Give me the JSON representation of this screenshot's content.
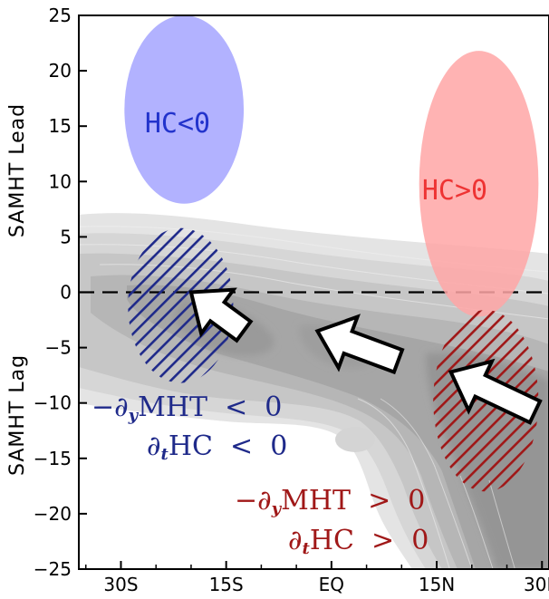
{
  "chart_data": {
    "type": "heatmap",
    "x_ticks": [
      {
        "value": -30,
        "label": "30S"
      },
      {
        "value": -15,
        "label": "15S"
      },
      {
        "value": 0,
        "label": "EQ"
      },
      {
        "value": 15,
        "label": "15N"
      },
      {
        "value": 30,
        "label": "30N"
      }
    ],
    "xlim": [
      -36,
      31
    ],
    "y_ticks": [
      25,
      20,
      15,
      10,
      5,
      0,
      -5,
      -10,
      -15,
      -20,
      -25
    ],
    "ylim": [
      -25,
      25
    ],
    "ylabel_top": "SAMHT Lead",
    "ylabel_bottom": "SAMHT Lag",
    "zero_line": 0,
    "regions": [
      {
        "label": "HC<0",
        "color": "#aaaaff",
        "text_color": "#2233cc",
        "center": [
          -21,
          16.5
        ],
        "radius": [
          8.5,
          8.5
        ]
      },
      {
        "label": "HC>0",
        "color": "#ffaaaa",
        "text_color": "#ee3333",
        "center": [
          21,
          9.8
        ],
        "radius": [
          8.5,
          12
        ]
      },
      {
        "label_lines": [
          "−∂yMHT  <  0",
          "∂tHC  <  0"
        ],
        "color": "#1f2a8a",
        "hatched": true,
        "center": [
          -21.5,
          -1.2
        ],
        "radius": [
          7.5,
          7
        ]
      },
      {
        "label_lines": [
          "−∂yMHT  >  0",
          "∂tHC  >  0"
        ],
        "color": "#a01818",
        "hatched": true,
        "center": [
          22,
          -9.8
        ],
        "radius": [
          7.5,
          8.2
        ]
      }
    ],
    "arrows": [
      {
        "from": [
          -12.5,
          -3.5
        ],
        "to": [
          -20,
          0
        ]
      },
      {
        "from": [
          9.5,
          -6.2
        ],
        "to": [
          -2,
          -3.5
        ]
      },
      {
        "from": [
          29,
          -10.8
        ],
        "to": [
          17,
          -7.2
        ]
      }
    ]
  },
  "annotations": {
    "hc_neg": "HC<0",
    "hc_pos": "HC>0",
    "blue_line1_prefix": "−∂",
    "blue_line1_sub": "y",
    "blue_line1_suffix": "MHT  <  0",
    "blue_line2_prefix": "∂",
    "blue_line2_sub": "t",
    "blue_line2_suffix": "HC  <  0",
    "red_line1_prefix": "−∂",
    "red_line1_sub": "y",
    "red_line1_suffix": "MHT  >  0",
    "red_line2_prefix": "∂",
    "red_line2_sub": "t",
    "red_line2_suffix": "HC  >  0"
  }
}
